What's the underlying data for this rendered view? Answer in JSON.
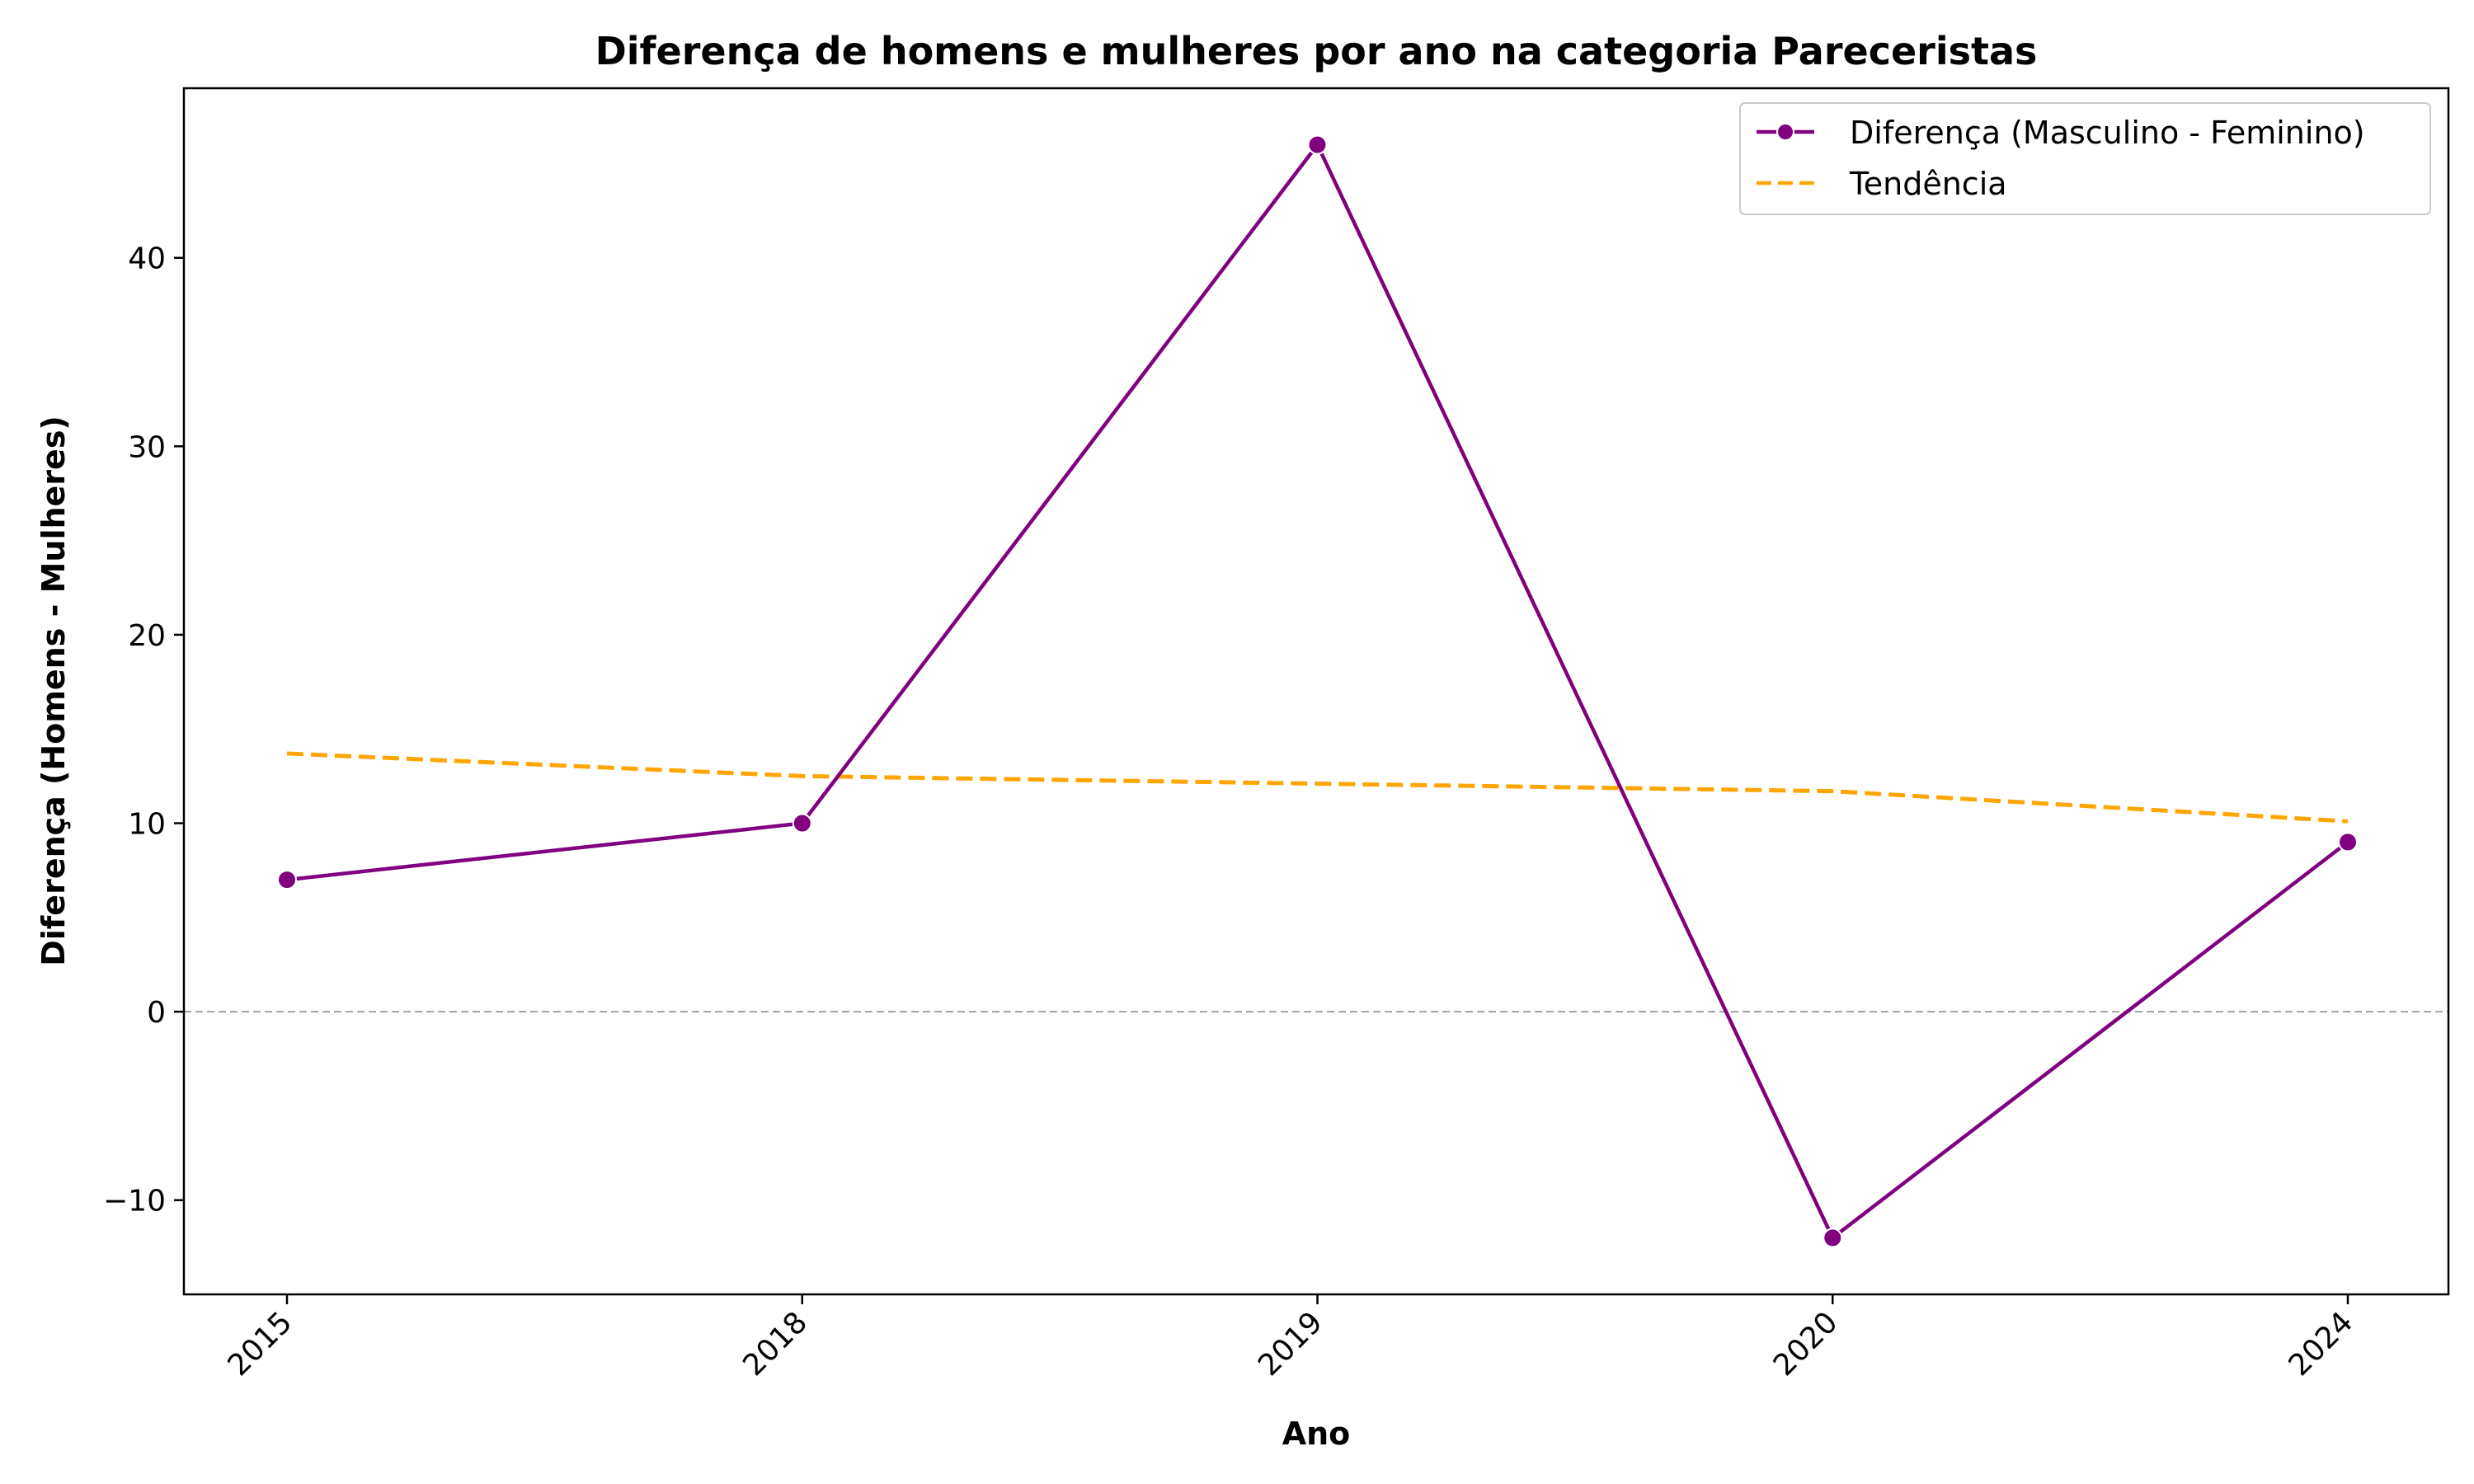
{
  "chart_data": {
    "type": "line",
    "title": "Diferença de homens e mulheres por ano na categoria Pareceristas",
    "xlabel": "Ano",
    "ylabel": "Diferença (Homens - Mulheres)",
    "categories": [
      "2015",
      "2018",
      "2019",
      "2020",
      "2024"
    ],
    "series": [
      {
        "name": "Diferença (Masculino - Feminino)",
        "values": [
          7,
          10,
          46,
          -12,
          9
        ],
        "color": "#800080",
        "style": "solid",
        "marker": "circle"
      },
      {
        "name": "Tendência",
        "values": [
          13.7,
          12.5,
          12.1,
          11.7,
          10.1
        ],
        "color": "#FFA500",
        "style": "dashed"
      }
    ],
    "ylim": [
      -15,
      49
    ],
    "yticks": [
      -10,
      0,
      10,
      20,
      30,
      40
    ],
    "ytick_labels": [
      "−10",
      "0",
      "10",
      "20",
      "30",
      "40"
    ],
    "zero_line": true,
    "grid": false,
    "legend_position": "top-right"
  }
}
